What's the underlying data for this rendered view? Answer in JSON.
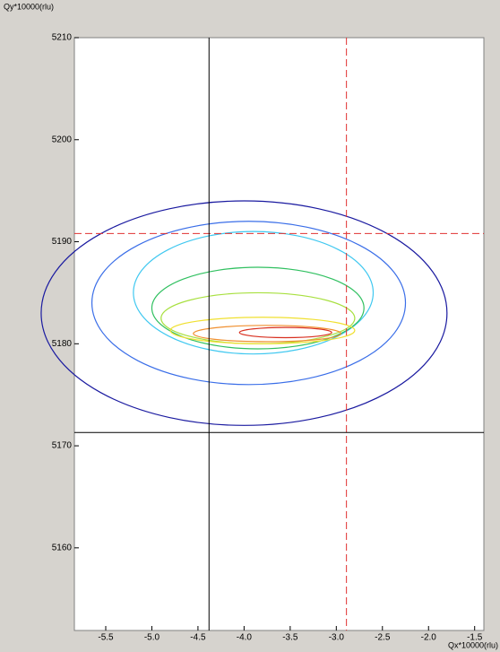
{
  "chart_data": {
    "type": "contour",
    "xlabel": "Qx*10000(rlu)",
    "ylabel": "Qy*10000(rlu)",
    "xlim": [
      -5.84,
      -1.4
    ],
    "ylim": [
      5151.9,
      5210
    ],
    "xticks": [
      {
        "value": -5.5,
        "label": "-5.5"
      },
      {
        "value": -5,
        "label": "-5.0"
      },
      {
        "value": -4.5,
        "label": "-4.5"
      },
      {
        "value": -4,
        "label": "-4.0"
      },
      {
        "value": -3.5,
        "label": "-3.5"
      },
      {
        "value": -3,
        "label": "-3.0"
      },
      {
        "value": -2.5,
        "label": "-2.5"
      },
      {
        "value": -2,
        "label": "-2.0"
      },
      {
        "value": -1.5,
        "label": "-1.5"
      }
    ],
    "yticks": [
      5160,
      5170,
      5180,
      5190,
      5200,
      5210
    ],
    "contours": [
      {
        "color": "#1a1aa0",
        "center_x": -4.0,
        "center_y": 5183,
        "width": 4.4,
        "height": 22
      },
      {
        "color": "#3a6ee8",
        "center_x": -3.95,
        "center_y": 5184,
        "width": 3.4,
        "height": 16
      },
      {
        "color": "#40c8f0",
        "center_x": -3.9,
        "center_y": 5185,
        "width": 2.6,
        "height": 12
      },
      {
        "color": "#30c060",
        "center_x": -3.85,
        "center_y": 5183.5,
        "width": 2.3,
        "height": 8
      },
      {
        "color": "#a8e040",
        "center_x": -3.85,
        "center_y": 5182.5,
        "width": 2.1,
        "height": 5
      },
      {
        "color": "#f0e030",
        "center_x": -3.8,
        "center_y": 5181.3,
        "width": 2.0,
        "height": 2.6
      },
      {
        "color": "#f09030",
        "center_x": -3.75,
        "center_y": 5181,
        "width": 1.6,
        "height": 1.6
      },
      {
        "color": "#d83020",
        "center_x": -3.55,
        "center_y": 5181.1,
        "width": 1.0,
        "height": 1.0
      }
    ],
    "crosshairs": [
      {
        "x": -2.89,
        "y": 5190.8,
        "color": "#e03030",
        "dashed": true
      },
      {
        "x": -4.38,
        "y": 5171.3,
        "color": "#000000",
        "dashed": false
      }
    ]
  }
}
